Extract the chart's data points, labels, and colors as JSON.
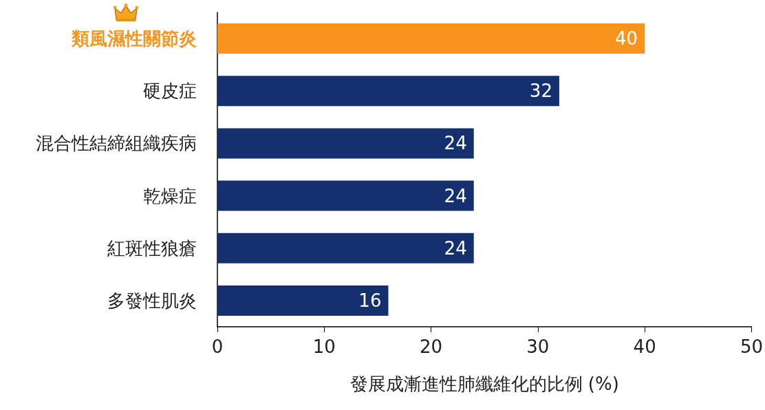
{
  "chart_data": {
    "type": "bar",
    "orientation": "horizontal",
    "xlabel": "發展成漸進性肺纖維化的比例 (%)",
    "categories": [
      "類風濕性關節炎",
      "硬皮症",
      "混合性結締組織疾病",
      "乾燥症",
      "紅斑性狼瘡",
      "多發性肌炎"
    ],
    "values": [
      40,
      32,
      24,
      24,
      24,
      16
    ],
    "colors": [
      "#f7941d",
      "#14306e",
      "#14306e",
      "#14306e",
      "#14306e",
      "#14306e"
    ],
    "xlim": [
      0,
      50
    ],
    "xticks": [
      0,
      10,
      20,
      30,
      40,
      50
    ],
    "grid": false,
    "data_labels": true
  }
}
